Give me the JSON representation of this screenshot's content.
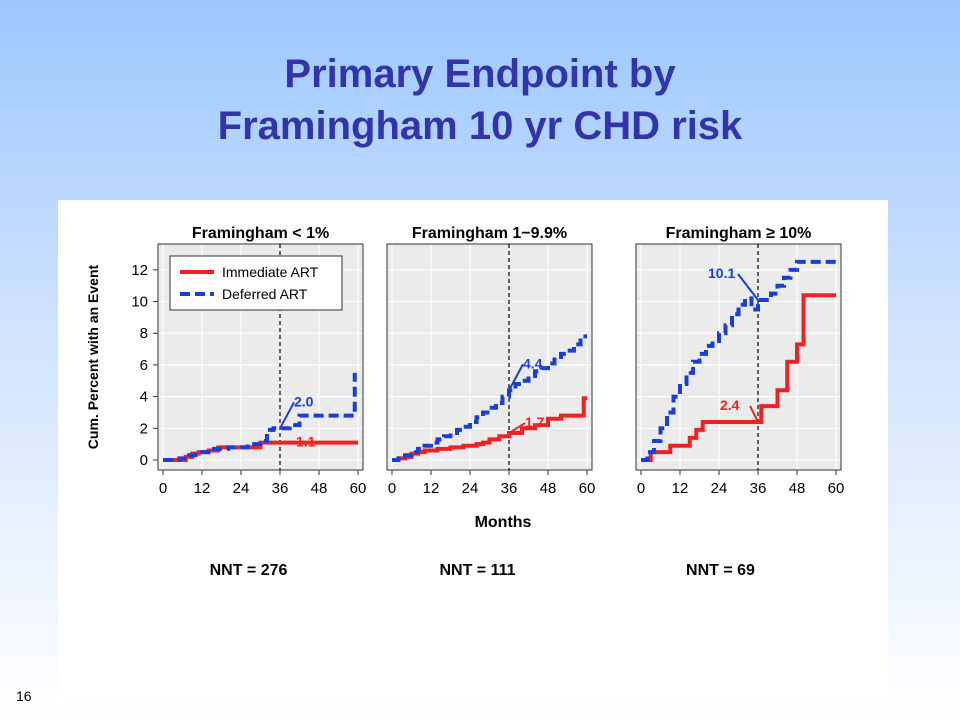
{
  "slide": {
    "title_line1": "Primary Endpoint by",
    "title_line2": "Framingham 10 yr CHD risk",
    "page_number": "16"
  },
  "chart_data": {
    "type": "line",
    "ylabel": "Cum. Percent with an Event",
    "xlabel": "Months",
    "x_ticks": [
      0,
      12,
      24,
      36,
      48,
      60
    ],
    "y_ticks": [
      0,
      2,
      4,
      6,
      8,
      10,
      12
    ],
    "xlim": [
      0,
      60
    ],
    "ylim": [
      0,
      13
    ],
    "grid": true,
    "legend": {
      "position": "top-left of first panel",
      "entries": [
        "Immediate ART",
        "Deferred ART"
      ]
    },
    "colors": {
      "immediate": "#ee2222",
      "deferred": "#1a3fd6"
    },
    "reference_line_x": 36,
    "panels": [
      {
        "title": "Framingham < 1%",
        "nnt": "NNT = 276",
        "series": [
          {
            "name": "Immediate ART",
            "style": "solid",
            "x": [
              0,
              6,
              7,
              9,
              11,
              14,
              17,
              20,
              24,
              28,
              30,
              36,
              60
            ],
            "y": [
              0,
              0,
              0.2,
              0.4,
              0.5,
              0.6,
              0.8,
              0.8,
              0.8,
              0.8,
              1.1,
              1.1,
              1.1
            ]
          },
          {
            "name": "Deferred ART",
            "style": "dashed",
            "x": [
              0,
              5,
              8,
              10,
              14,
              17,
              20,
              24,
              26,
              30,
              32,
              34,
              36,
              39,
              42,
              50,
              56,
              59,
              59
            ],
            "y": [
              0,
              0.1,
              0.3,
              0.5,
              0.7,
              0.7,
              0.8,
              0.8,
              1.0,
              1.2,
              1.9,
              2.0,
              2.0,
              2.2,
              2.8,
              2.8,
              2.8,
              2.8,
              5.5
            ]
          }
        ],
        "annotations": [
          {
            "text": "2.0",
            "series": "Deferred ART",
            "x": 36,
            "y": 2.0
          },
          {
            "text": "1.1",
            "series": "Immediate ART",
            "x": 36,
            "y": 1.1
          }
        ]
      },
      {
        "title": "Framingham 1−9.9%",
        "nnt": "NNT = 111",
        "series": [
          {
            "name": "Immediate ART",
            "style": "solid",
            "x": [
              0,
              2,
              4,
              6,
              8,
              10,
              14,
              18,
              22,
              26,
              28,
              30,
              33,
              36,
              40,
              44,
              48,
              52,
              56,
              59,
              60
            ],
            "y": [
              0,
              0.1,
              0.2,
              0.4,
              0.5,
              0.6,
              0.7,
              0.8,
              0.9,
              1.0,
              1.1,
              1.3,
              1.5,
              1.7,
              2.0,
              2.2,
              2.6,
              2.8,
              2.8,
              3.9,
              3.9
            ]
          },
          {
            "name": "Deferred ART",
            "style": "dashed",
            "x": [
              0,
              2,
              4,
              6,
              8,
              10,
              12,
              14,
              16,
              18,
              20,
              22,
              24,
              26,
              28,
              30,
              32,
              34,
              36,
              38,
              40,
              42,
              44,
              46,
              48,
              50,
              52,
              54,
              56,
              58,
              60
            ],
            "y": [
              0,
              0.1,
              0.3,
              0.5,
              0.7,
              0.9,
              1.1,
              1.3,
              1.5,
              1.7,
              1.9,
              2.1,
              2.4,
              2.7,
              3.0,
              3.3,
              3.6,
              4.0,
              4.4,
              4.8,
              5.0,
              5.3,
              5.6,
              5.8,
              6.1,
              6.5,
              6.7,
              6.9,
              7.3,
              7.8,
              7.8
            ]
          }
        ],
        "annotations": [
          {
            "text": "4.4",
            "series": "Deferred ART",
            "x": 36,
            "y": 4.4
          },
          {
            "text": "1.7",
            "series": "Immediate ART",
            "x": 36,
            "y": 1.7
          }
        ]
      },
      {
        "title": "Framingham ≥ 10%",
        "nnt": "NNT = 69",
        "series": [
          {
            "name": "Immediate ART",
            "style": "solid",
            "x": [
              0,
              3,
              9,
              15,
              17,
              19,
              21,
              36,
              37,
              42,
              45,
              48,
              50,
              52,
              60
            ],
            "y": [
              0,
              0.5,
              0.9,
              1.4,
              1.9,
              2.4,
              2.4,
              2.4,
              3.4,
              4.4,
              6.2,
              7.3,
              10.4,
              10.4,
              10.4
            ]
          },
          {
            "name": "Deferred ART",
            "style": "dashed",
            "x": [
              0,
              2,
              4,
              6,
              8,
              10,
              12,
              14,
              16,
              18,
              20,
              22,
              24,
              26,
              28,
              30,
              32,
              34,
              36,
              38,
              40,
              42,
              44,
              46,
              48,
              50,
              52,
              56,
              60
            ],
            "y": [
              0,
              0.5,
              1.2,
              2.0,
              3.0,
              4.0,
              4.8,
              5.5,
              6.2,
              6.7,
              7.2,
              7.5,
              8.0,
              8.5,
              9.2,
              9.8,
              10.2,
              9.5,
              10.1,
              10.1,
              10.5,
              11.0,
              11.5,
              12.0,
              12.5,
              12.5,
              12.5,
              12.5,
              12.5
            ]
          }
        ],
        "annotations": [
          {
            "text": "10.1",
            "series": "Deferred ART",
            "x": 36,
            "y": 10.1
          },
          {
            "text": "2.4",
            "series": "Immediate ART",
            "x": 36,
            "y": 2.4
          }
        ]
      }
    ]
  }
}
